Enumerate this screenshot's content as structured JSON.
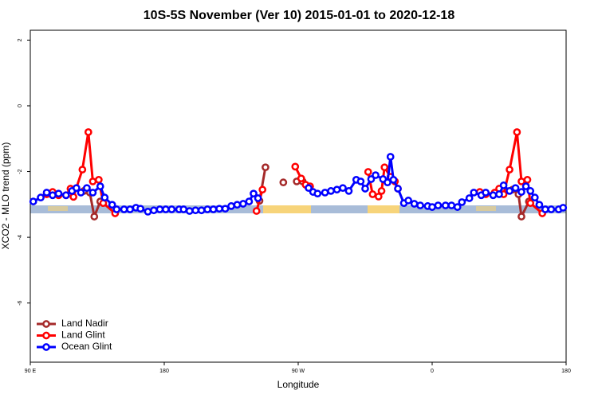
{
  "chart_data": {
    "type": "line",
    "title": "10S-5S November (Ver 10)   2015-01-01 to 2020-12-18",
    "x_label": "Longitude",
    "y_label": "XCO2 - MLO trend (ppm)",
    "xlim": [
      90,
      450
    ],
    "xticks": [
      {
        "value": 90,
        "label": "90 E"
      },
      {
        "value": 180,
        "label": "180"
      },
      {
        "value": 270,
        "label": "90 W"
      },
      {
        "value": 360,
        "label": "0"
      },
      {
        "value": 450,
        "label": "180"
      }
    ],
    "ylim": [
      -7.8,
      2.3
    ],
    "yticks": [
      2,
      0,
      -2,
      -4,
      -6
    ],
    "legend": "bottom-left",
    "series": [
      {
        "name": "Land Nadir",
        "color": "#a52a2a",
        "x": [
          126,
          130,
          133,
          137,
          null,
          244,
          248,
          null,
          260,
          null,
          269,
          273,
          null,
          414,
          418,
          420,
          425
        ],
        "values": [
          -2.59,
          -2.64,
          -3.37,
          -2.91,
          null,
          -2.89,
          -1.87,
          null,
          -2.33,
          null,
          -2.3,
          -2.3,
          null,
          -2.55,
          -2.69,
          -3.37,
          -2.91
        ]
      },
      {
        "name": "Land Glint",
        "color": "#ff0000",
        "x": [
          101,
          105,
          109,
          114,
          117,
          119,
          125,
          129,
          132,
          136,
          139,
          147,
          null,
          242,
          246,
          null,
          268,
          272,
          275,
          278,
          null,
          317,
          320,
          324,
          326,
          328,
          332,
          335,
          337,
          null,
          392,
          396,
          402,
          405,
          408,
          412,
          417,
          420,
          424,
          426,
          434
        ],
        "values": [
          -2.69,
          -2.62,
          -2.72,
          -2.72,
          -2.52,
          -2.77,
          -1.94,
          -0.8,
          -2.3,
          -2.25,
          -2.96,
          -3.27,
          null,
          -3.2,
          -2.55,
          null,
          -1.85,
          -2.21,
          -2.4,
          -2.45,
          null,
          -2.01,
          -2.69,
          -2.76,
          -2.59,
          -1.87,
          -2.16,
          -2.3,
          -2.52,
          null,
          -2.62,
          -2.69,
          -2.64,
          -2.52,
          -2.69,
          -1.94,
          -0.8,
          -2.3,
          -2.25,
          -2.96,
          -3.27
        ]
      },
      {
        "name": "Ocean Glint",
        "color": "#0000ff",
        "x": [
          92,
          97,
          101,
          105,
          109,
          114,
          118,
          121,
          124,
          128,
          132,
          137,
          140,
          145,
          148,
          153,
          157,
          161,
          164,
          169,
          173,
          177,
          181,
          185,
          190,
          193,
          197,
          201,
          205,
          209,
          213,
          217,
          221,
          225,
          229,
          233,
          237,
          240,
          243,
          null,
          277,
          280,
          283,
          288,
          292,
          296,
          300,
          304,
          309,
          312,
          315,
          319,
          322,
          327,
          330,
          332,
          334,
          337,
          341,
          344,
          348,
          352,
          357,
          360,
          364,
          369,
          373,
          377,
          380,
          385,
          388,
          393,
          396,
          401,
          405,
          408,
          412,
          416,
          420,
          423,
          426,
          429,
          432,
          436,
          440,
          445,
          448
        ],
        "values": [
          -2.91,
          -2.79,
          -2.64,
          -2.72,
          -2.67,
          -2.72,
          -2.59,
          -2.5,
          -2.64,
          -2.5,
          -2.64,
          -2.45,
          -2.79,
          -3.01,
          -3.15,
          -3.15,
          -3.15,
          -3.1,
          -3.13,
          -3.22,
          -3.18,
          -3.15,
          -3.15,
          -3.15,
          -3.15,
          -3.15,
          -3.2,
          -3.18,
          -3.18,
          -3.15,
          -3.15,
          -3.13,
          -3.13,
          -3.05,
          -3.01,
          -2.98,
          -2.91,
          -2.67,
          -2.81,
          null,
          -2.5,
          -2.62,
          -2.67,
          -2.64,
          -2.59,
          -2.55,
          -2.5,
          -2.59,
          -2.25,
          -2.3,
          -2.52,
          -2.23,
          -2.11,
          -2.23,
          -2.33,
          -1.55,
          -2.25,
          -2.52,
          -2.96,
          -2.88,
          -2.98,
          -3.03,
          -3.05,
          -3.08,
          -3.03,
          -3.03,
          -3.03,
          -3.08,
          -2.93,
          -2.81,
          -2.64,
          -2.72,
          -2.64,
          -2.72,
          -2.69,
          -2.42,
          -2.59,
          -2.5,
          -2.62,
          -2.45,
          -2.59,
          -2.79,
          -3.01,
          -3.15,
          -3.15,
          -3.15,
          -3.1
        ]
      }
    ]
  }
}
